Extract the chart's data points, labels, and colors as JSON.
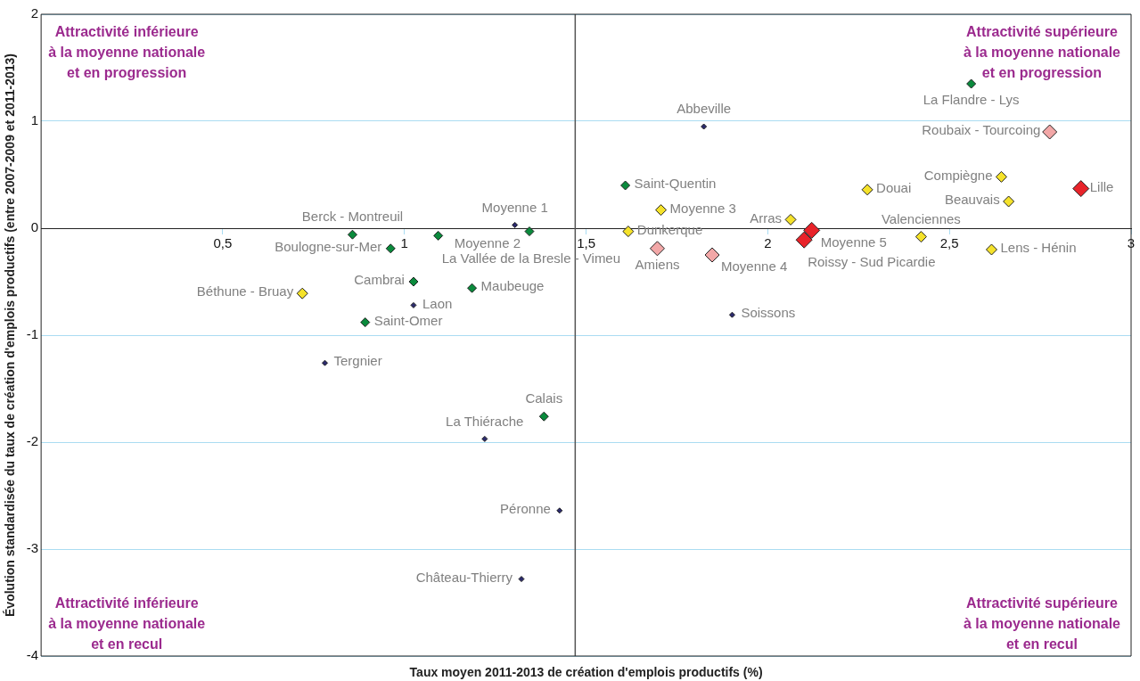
{
  "chart_data": {
    "type": "scatter",
    "xlabel": "Taux moyen 2011-2013 de création d'emplois productifs (%)",
    "ylabel": "Évolution standardisée du taux de création d'emplois productifs (entre 2007-2009 et 2011-2013)",
    "xlim": [
      0,
      3
    ],
    "ylim": [
      -4,
      2
    ],
    "xticks": [
      {
        "value": 0.5,
        "label": "0,5"
      },
      1,
      {
        "value": 1.5,
        "label": "1,5"
      },
      2,
      {
        "value": 2.5,
        "label": "2,5"
      },
      3
    ],
    "yticks": [
      -4,
      -3,
      -2,
      -1,
      0,
      1,
      2
    ],
    "grid": "y",
    "legend": false,
    "marker": "diamond",
    "ref_lines": [
      {
        "axis": "x",
        "value": 1.47,
        "color": "#555555"
      }
    ],
    "series": [
      {
        "color": "#2b2a6e",
        "x": [
          1.824,
          1.304,
          1.025,
          0.781,
          1.221,
          1.427,
          1.322,
          1.902
        ],
        "values": [
          0.95,
          0.03,
          -0.72,
          -1.26,
          -1.97,
          -2.64,
          -3.28,
          -0.81
        ]
      },
      {
        "color": "#0a8a3c",
        "x": [
          2.56,
          1.608,
          0.857,
          0.962,
          1.093,
          1.344,
          1.025,
          1.186,
          0.892,
          1.384
        ],
        "values": [
          1.35,
          0.4,
          -0.06,
          -0.19,
          -0.07,
          -0.03,
          -0.5,
          -0.56,
          -0.88,
          -1.76
        ]
      },
      {
        "color": "#f5e22a",
        "x": [
          0.719,
          1.706,
          1.616,
          2.063,
          2.274,
          2.643,
          2.663,
          2.422,
          2.616
        ],
        "values": [
          -0.61,
          0.17,
          -0.03,
          0.08,
          0.36,
          0.48,
          0.25,
          -0.08,
          -0.2
        ]
      },
      {
        "color": "#f2a7a7",
        "x": [
          1.696,
          1.847,
          2.776
        ],
        "values": [
          -0.19,
          -0.25,
          0.9
        ]
      },
      {
        "color": "#e8232a",
        "x": [
          2.862,
          2.121,
          2.1
        ],
        "values": [
          0.37,
          -0.02,
          -0.11
        ]
      }
    ],
    "annotations": [
      "Attractivité inférieure\nà la moyenne nationale\net en progression",
      "Attractivité supérieure\nà la moyenne nationale\net en progression",
      "Attractivité inférieure\nà la moyenne nationale\net en recul",
      "Attractivité supérieure\nà la moyenne nationale\net en recul",
      {
        "text": "Abbeville",
        "x": 1.824,
        "y": 0.95
      },
      {
        "text": "Moyenne 1",
        "x": 1.304,
        "y": 0.03
      },
      {
        "text": "Laon",
        "x": 1.025,
        "y": -0.72
      },
      {
        "text": "Tergnier",
        "x": 0.781,
        "y": -1.26
      },
      {
        "text": "La Thiérache",
        "x": 1.221,
        "y": -1.97
      },
      {
        "text": "Péronne",
        "x": 1.427,
        "y": -2.64
      },
      {
        "text": "Château-Thierry",
        "x": 1.322,
        "y": -3.28
      },
      {
        "text": "Soissons",
        "x": 1.902,
        "y": -0.81
      },
      {
        "text": "La Flandre - Lys",
        "x": 2.56,
        "y": 1.35
      },
      {
        "text": "Saint-Quentin",
        "x": 1.608,
        "y": 0.4
      },
      {
        "text": "Berck - Montreuil",
        "x": 0.857,
        "y": -0.06
      },
      {
        "text": "Boulogne-sur-Mer",
        "x": 0.962,
        "y": -0.19
      },
      {
        "text": "La Vallée de la Bresle - Vimeu",
        "x": 1.093,
        "y": -0.07
      },
      {
        "text": "Moyenne 2",
        "x": 1.344,
        "y": -0.03
      },
      {
        "text": "Cambrai",
        "x": 1.025,
        "y": -0.5
      },
      {
        "text": "Maubeuge",
        "x": 1.186,
        "y": -0.56
      },
      {
        "text": "Saint-Omer",
        "x": 0.892,
        "y": -0.88
      },
      {
        "text": "Calais",
        "x": 1.384,
        "y": -1.76
      },
      {
        "text": "Béthune - Bruay",
        "x": 0.719,
        "y": -0.61
      },
      {
        "text": "Moyenne 3",
        "x": 1.706,
        "y": 0.17
      },
      {
        "text": "Dunkerque",
        "x": 1.616,
        "y": -0.03
      },
      {
        "text": "Arras",
        "x": 2.063,
        "y": 0.08
      },
      {
        "text": "Douai",
        "x": 2.274,
        "y": 0.36
      },
      {
        "text": "Compiègne",
        "x": 2.643,
        "y": 0.48
      },
      {
        "text": "Beauvais",
        "x": 2.663,
        "y": 0.25
      },
      {
        "text": "Valenciennes",
        "x": 2.422,
        "y": -0.08
      },
      {
        "text": "Lens - Hénin",
        "x": 2.616,
        "y": -0.2
      },
      {
        "text": "Amiens",
        "x": 1.696,
        "y": -0.19
      },
      {
        "text": "Moyenne 4",
        "x": 1.847,
        "y": -0.25
      },
      {
        "text": "Roubaix - Tourcoing",
        "x": 2.776,
        "y": 0.9
      },
      {
        "text": "Lille",
        "x": 2.862,
        "y": 0.37
      },
      {
        "text": "Moyenne 5",
        "x": 2.121,
        "y": -0.02
      },
      {
        "text": "Roissy - Sud Picardie",
        "x": 2.1,
        "y": -0.11
      }
    ]
  }
}
